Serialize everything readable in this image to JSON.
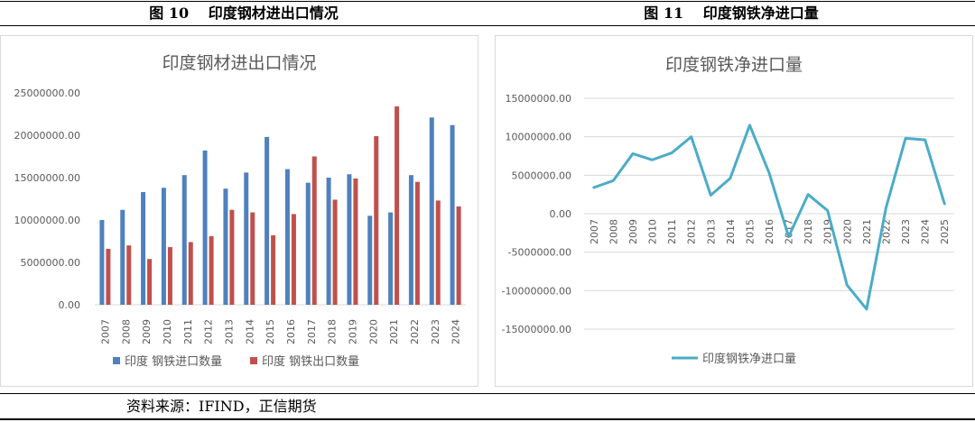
{
  "figures": {
    "left_title": "图 10　 印度钢材进出口情况",
    "right_title": "图 11　 印度钢铁净进口量"
  },
  "source": "资料来源：IFIND，正信期货",
  "colors": {
    "import_bar": "#4f81bd",
    "export_bar": "#c0504d",
    "net_line": "#4bacc6"
  },
  "chart_data": [
    {
      "type": "bar",
      "title": "印度钢材进出口情况",
      "categories": [
        "2007",
        "2008",
        "2009",
        "2010",
        "2011",
        "2012",
        "2013",
        "2014",
        "2015",
        "2016",
        "2017",
        "2018",
        "2019",
        "2020",
        "2021",
        "2022",
        "2023",
        "2024"
      ],
      "series": [
        {
          "name": "印度 钢铁进口数量",
          "values": [
            10000000,
            11200000,
            13300000,
            13800000,
            15300000,
            18200000,
            13700000,
            15600000,
            19800000,
            16000000,
            14400000,
            15000000,
            15400000,
            10500000,
            10900000,
            15300000,
            22100000,
            21200000
          ]
        },
        {
          "name": "印度 钢铁出口数量",
          "values": [
            6600000,
            7000000,
            5400000,
            6800000,
            7400000,
            8100000,
            11200000,
            10900000,
            8200000,
            10700000,
            17500000,
            12400000,
            14900000,
            19900000,
            23400000,
            14500000,
            12300000,
            11600000
          ]
        }
      ],
      "ylim": [
        0,
        25000000
      ],
      "yticks": [
        "0.00",
        "5000000.00",
        "10000000.00",
        "15000000.00",
        "20000000.00",
        "25000000.00"
      ],
      "legend": "bottom"
    },
    {
      "type": "line",
      "title": "印度钢铁净进口量",
      "categories": [
        "2007",
        "2008",
        "2009",
        "2010",
        "2011",
        "2012",
        "2013",
        "2014",
        "2015",
        "2016",
        "2017",
        "2018",
        "2019",
        "2020",
        "2021",
        "2022",
        "2023",
        "2024",
        "2025"
      ],
      "series": [
        {
          "name": "印度钢铁净进口量",
          "values": [
            3400000,
            4300000,
            7800000,
            7000000,
            7900000,
            10000000,
            2400000,
            4600000,
            11500000,
            5300000,
            -3000000,
            2500000,
            400000,
            -9300000,
            -12400000,
            800000,
            9800000,
            9600000,
            1300000
          ]
        }
      ],
      "ylim": [
        -15000000,
        15000000
      ],
      "yticks": [
        "-15000000.00",
        "-10000000.00",
        "-5000000.00",
        "0.00",
        "5000000.00",
        "10000000.00",
        "15000000.00"
      ],
      "legend": "bottom"
    }
  ]
}
